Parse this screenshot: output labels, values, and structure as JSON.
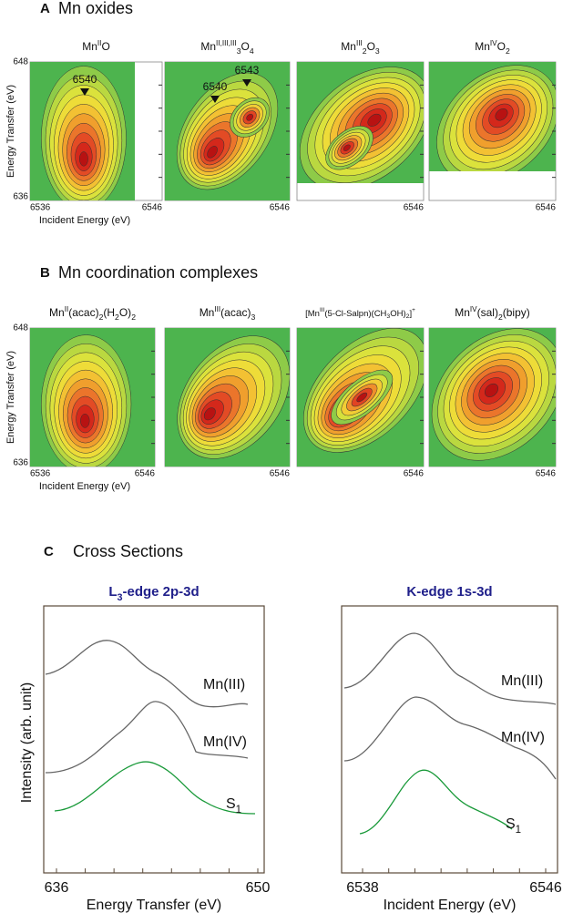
{
  "panel_a": {
    "letter": "A",
    "title": "Mn oxides",
    "y_axis": {
      "label": "Energy Transfer (eV)",
      "ticks": [
        648,
        636
      ]
    },
    "x_axis": {
      "label": "Incident Energy (eV)"
    },
    "plots": [
      {
        "title": [
          {
            "text": "Mn"
          },
          {
            "sup": "II"
          },
          {
            "text": "O"
          }
        ],
        "xticks": [
          6536,
          6546
        ],
        "annotations": [
          6540
        ]
      },
      {
        "title": [
          {
            "text": "Mn"
          },
          {
            "sup": "II,III,III"
          },
          {
            "sub": "3"
          },
          {
            "text": "O"
          },
          {
            "sub": "4"
          }
        ],
        "xticks": [
          6546
        ],
        "annotations": [
          6540,
          6543
        ]
      },
      {
        "title": [
          {
            "text": "Mn"
          },
          {
            "sup": "III"
          },
          {
            "sub": "2"
          },
          {
            "text": "O"
          },
          {
            "sub": "3"
          }
        ],
        "xticks": [
          6546
        ]
      },
      {
        "title": [
          {
            "text": "Mn"
          },
          {
            "sup": "IV"
          },
          {
            "text": "O"
          },
          {
            "sub": "2"
          }
        ],
        "xticks": [
          6546
        ]
      }
    ]
  },
  "panel_b": {
    "letter": "B",
    "title": "Mn coordination complexes",
    "y_axis": {
      "label": "Energy Transfer (eV)",
      "ticks": [
        648,
        636
      ]
    },
    "x_axis": {
      "label": "Incident Energy (eV)"
    },
    "plots": [
      {
        "title": [
          {
            "text": "Mn"
          },
          {
            "sup": "II"
          },
          {
            "text": "(acac)"
          },
          {
            "sub": "2"
          },
          {
            "text": "(H"
          },
          {
            "sub": "2"
          },
          {
            "text": "O)"
          },
          {
            "sub": "2"
          }
        ],
        "xticks": [
          6536,
          6546
        ]
      },
      {
        "title": [
          {
            "text": "Mn"
          },
          {
            "sup": "III"
          },
          {
            "text": "(acac)"
          },
          {
            "sub": "3"
          }
        ],
        "xticks": [
          6546
        ]
      },
      {
        "title": [
          {
            "text": "[Mn"
          },
          {
            "sup": "III"
          },
          {
            "text": "(5-Cl-Salpn)(CH"
          },
          {
            "sub": "3"
          },
          {
            "text": "OH)"
          },
          {
            "sub": "2"
          },
          {
            "text": "]"
          },
          {
            "sup": "+"
          }
        ],
        "xticks": [
          6546
        ]
      },
      {
        "title": [
          {
            "text": "Mn"
          },
          {
            "sup": "IV"
          },
          {
            "text": "(sal)"
          },
          {
            "sub": "2"
          },
          {
            "text": "(bipy)"
          }
        ],
        "xticks": [
          6546
        ]
      }
    ]
  },
  "panel_c": {
    "letter": "C",
    "title": "Cross Sections",
    "y_label": "Intensity (arb. unit)",
    "charts": [
      {
        "title": [
          {
            "text": "L"
          },
          {
            "sub": "3"
          },
          {
            "text": "-edge 2p-3d"
          }
        ],
        "x_label": "Energy Transfer (eV)",
        "xticks": [
          636,
          650
        ],
        "series": [
          {
            "name": [
              {
                "text": "Mn(III)"
              }
            ],
            "color": "#666666"
          },
          {
            "name": [
              {
                "text": "Mn(IV)"
              }
            ],
            "color": "#666666"
          },
          {
            "name": [
              {
                "text": "S"
              },
              {
                "sub": "1"
              }
            ],
            "color": "#1a9a3a"
          }
        ]
      },
      {
        "title": [
          {
            "text": "K-edge 1s-3d"
          }
        ],
        "x_label": "Incident Energy (eV)",
        "xticks": [
          6538,
          6546
        ],
        "series": [
          {
            "name": [
              {
                "text": "Mn(III)"
              }
            ],
            "color": "#666666"
          },
          {
            "name": [
              {
                "text": "Mn(IV)"
              }
            ],
            "color": "#666666"
          },
          {
            "name": [
              {
                "text": "S"
              },
              {
                "sub": "1"
              }
            ],
            "color": "#1a9a3a"
          }
        ]
      }
    ]
  }
}
